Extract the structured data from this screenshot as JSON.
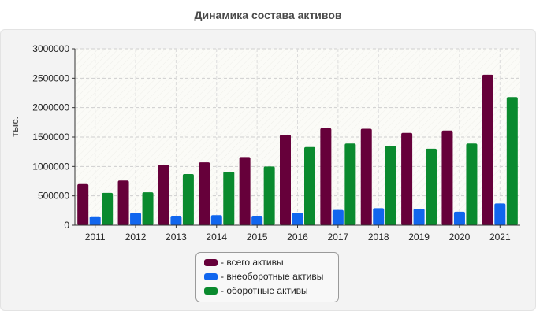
{
  "chart_data": {
    "type": "bar",
    "title": "Динамика состава активов",
    "ylabel": "тыс.",
    "xlabel": "",
    "categories": [
      "2011",
      "2012",
      "2013",
      "2014",
      "2015",
      "2016",
      "2017",
      "2018",
      "2019",
      "2020",
      "2021"
    ],
    "ylim": [
      0,
      3000000
    ],
    "yticks": [
      0,
      500000,
      1000000,
      1500000,
      2000000,
      2500000,
      3000000
    ],
    "ytick_labels": [
      "0",
      "500000",
      "1000000",
      "1500000",
      "2000000",
      "2500000",
      "3000000"
    ],
    "grid": true,
    "legend_position": "bottom",
    "series": [
      {
        "name": "- всего активы",
        "color": "#66003a",
        "values": [
          700000,
          760000,
          1030000,
          1070000,
          1160000,
          1540000,
          1650000,
          1640000,
          1570000,
          1610000,
          2560000
        ]
      },
      {
        "name": "- внеоборотные активы",
        "color": "#1166ee",
        "values": [
          150000,
          210000,
          160000,
          170000,
          160000,
          210000,
          260000,
          290000,
          280000,
          230000,
          370000
        ]
      },
      {
        "name": "- оборотные активы",
        "color": "#0a8a2e",
        "values": [
          550000,
          560000,
          870000,
          910000,
          1000000,
          1330000,
          1390000,
          1350000,
          1300000,
          1390000,
          2180000
        ]
      }
    ]
  }
}
